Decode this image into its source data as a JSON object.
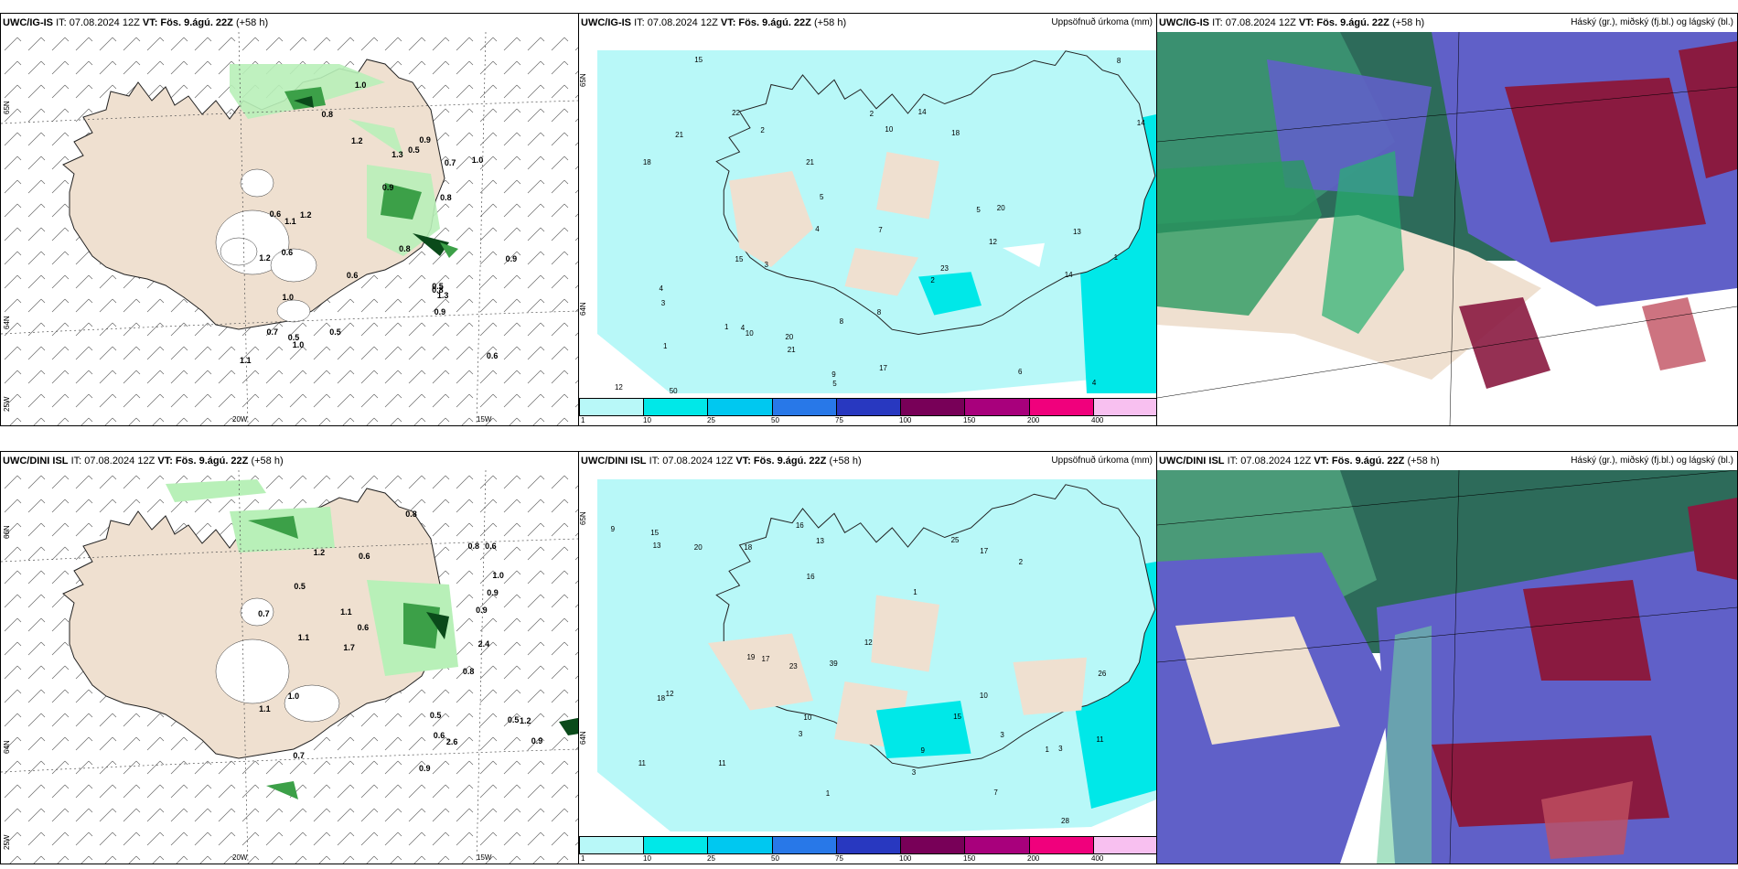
{
  "top_row": {
    "wind_panel": {
      "model": "UWC/IG-IS",
      "it_label": "IT: 07.08.2024 12Z",
      "vt_label": "VT: Fös. 9.ágú. 22Z",
      "lead": "(+58 h)",
      "lat_labels": [
        "65N",
        "64N",
        "25W"
      ],
      "lon_labels": [
        "20W",
        "15W"
      ],
      "values": [
        "0.6",
        "0.9",
        "0.7",
        "0.9",
        "1.2",
        "1.0",
        "0.8",
        "1.1",
        "0.5",
        "0.8",
        "0.8",
        "0.5",
        "0.7",
        "0.9",
        "0.5",
        "1.2",
        "1.3",
        "0.6",
        "0.5",
        "0.6",
        "1.2",
        "0.8",
        "1.0",
        "0.6",
        "1.1",
        "1.0",
        "0.9",
        "1.0",
        "1.3"
      ]
    },
    "precip_panel": {
      "model": "UWC/IG-IS",
      "it_label": "IT: 07.08.2024 12Z",
      "vt_label": "VT: Fös. 9.ágú. 22Z",
      "lead": "(+58 h)",
      "field_title": "Uppsöfnuð úrkoma (mm)",
      "lat_labels": [
        "65N",
        "64N"
      ],
      "colorbar": {
        "ticks": [
          "1",
          "10",
          "25",
          "50",
          "75",
          "100",
          "150",
          "200",
          "400"
        ],
        "colors": [
          "#b8f8f8",
          "#00e8e8",
          "#00c8f0",
          "#2878e8",
          "#2838c0",
          "#780058",
          "#a8007c",
          "#f0007c",
          "#f8c0f0"
        ]
      },
      "values": [
        "2",
        "1",
        "3",
        "4",
        "6",
        "5",
        "4",
        "4",
        "4",
        "2",
        "12",
        "10",
        "8",
        "7",
        "9",
        "10",
        "8",
        "5",
        "3",
        "5",
        "14",
        "13",
        "15",
        "18",
        "21",
        "14",
        "21",
        "12",
        "14",
        "50",
        "22",
        "20",
        "23",
        "20",
        "21",
        "15",
        "18",
        "17",
        "2",
        "8",
        "1",
        "1"
      ]
    },
    "cloud_panel": {
      "model": "UWC/IG-IS",
      "it_label": "IT: 07.08.2024 12Z",
      "vt_label": "VT: Fös. 9.ágú. 22Z",
      "lead": "(+58 h)",
      "field_title": "Háský (gr.), miðský (fj.bl.) og lágský (bl.)"
    }
  },
  "bottom_row": {
    "wind_panel": {
      "model": "UWC/DINI ISL",
      "it_label": "IT: 07.08.2024 12Z",
      "vt_label": "VT: Fös. 9.ágú. 22Z",
      "lead": "(+58 h)",
      "lat_labels": [
        "66N",
        "64N",
        "25W"
      ],
      "lon_labels": [
        "20W",
        "15W"
      ],
      "values": [
        "0.7",
        "0.5",
        "1.1",
        "0.5",
        "0.9",
        "0.5",
        "0.6",
        "0.8",
        "1.1",
        "1.0",
        "0.9",
        "1.2",
        "0.9",
        "0.8",
        "0.6",
        "0.6",
        "2.6",
        "0.9",
        "0.7",
        "1.2",
        "1.7",
        "1.1",
        "1.0",
        "2.4",
        "0.6",
        "0.8"
      ]
    },
    "precip_panel": {
      "model": "UWC/DINI ISL",
      "it_label": "IT: 07.08.2024 12Z",
      "vt_label": "VT: Fös. 9.ágú. 22Z",
      "lead": "(+58 h)",
      "field_title": "Uppsöfnuð úrkoma (mm)",
      "lat_labels": [
        "65N",
        "64N"
      ],
      "colorbar": {
        "ticks": [
          "1",
          "10",
          "25",
          "50",
          "75",
          "100",
          "150",
          "200",
          "400"
        ],
        "colors": [
          "#b8f8f8",
          "#00e8e8",
          "#00c8f0",
          "#2878e8",
          "#2838c0",
          "#780058",
          "#a8007c",
          "#f0007c",
          "#f8c0f0"
        ]
      },
      "values": [
        "2",
        "3",
        "3",
        "1",
        "1",
        "3",
        "10",
        "11",
        "9",
        "12",
        "13",
        "16",
        "18",
        "20",
        "17",
        "16",
        "17",
        "13",
        "12",
        "23",
        "18",
        "28",
        "39",
        "25",
        "26",
        "19",
        "15",
        "15",
        "11",
        "7",
        "10",
        "9",
        "11",
        "1",
        "3"
      ]
    },
    "cloud_panel": {
      "model": "UWC/DINI ISL",
      "it_label": "IT: 07.08.2024 12Z",
      "vt_label": "VT: Fös. 9.ágú. 22Z",
      "lead": "(+58 h)",
      "field_title": "Háský (gr.), miðský (fj.bl.) og lágský (bl.)"
    }
  },
  "colors": {
    "land": "#efe0d0",
    "light_precip": "#b8f0b8",
    "mid_precip": "#3ca048",
    "heavy_precip": "#0a4a1a",
    "sea_precip": "#b8f8f8",
    "high_cloud": "#2a8a50",
    "mid_cloud": "#6060c8",
    "low_cloud": "#8a1a40"
  }
}
